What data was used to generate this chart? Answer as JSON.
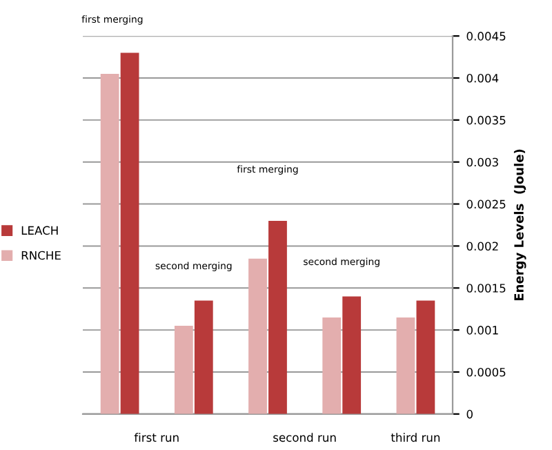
{
  "chart_data": {
    "type": "bar",
    "categories": [
      null,
      null,
      null,
      null,
      null
    ],
    "series": [
      {
        "name": "RNCHE",
        "color": "#e3aeae",
        "values": [
          0.00405,
          0.00105,
          0.00185,
          0.00115,
          0.00115
        ]
      },
      {
        "name": "LEACH",
        "color": "#b83a3a",
        "values": [
          0.0043,
          0.00135,
          0.0023,
          0.0014,
          0.00135
        ]
      }
    ],
    "ylabel": "Energy Levels  (Joule)",
    "ylim": [
      0,
      0.0045
    ],
    "yticks": [
      0,
      0.0005,
      0.001,
      0.0015,
      0.002,
      0.0025,
      0.003,
      0.0035,
      0.004,
      0.0045
    ],
    "grid": "y",
    "legend": "left",
    "annotations": [
      "first merging",
      "second merging",
      "first merging",
      "second merging",
      "first run",
      "second run",
      "third run"
    ]
  }
}
